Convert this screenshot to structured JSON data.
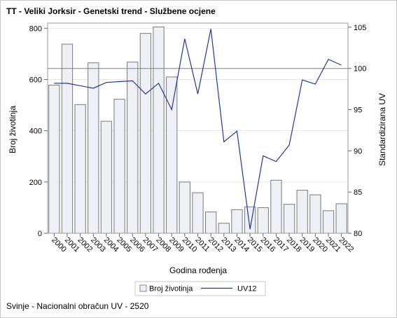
{
  "chart_data": {
    "type": "bar",
    "title": "TT - Veliki Jorksir - Genetski trend - Službene ocjene",
    "xlabel": "Godina rođenja",
    "ylabel": "Broj životinja",
    "y2label": "Standardizirana UV",
    "ylim": [
      0,
      820
    ],
    "y2lim": [
      80,
      105.5
    ],
    "yticks": [
      0,
      200,
      400,
      600,
      800
    ],
    "y2ticks": [
      80,
      85,
      90,
      95,
      100,
      105
    ],
    "reference_line_y2": 100,
    "grid": true,
    "legend_position": "bottom",
    "categories": [
      "2000",
      "2001",
      "2002",
      "2003",
      "2004",
      "2005",
      "2006",
      "2007",
      "2008",
      "2009",
      "2010",
      "2011",
      "2012",
      "2013",
      "2014",
      "2015",
      "2016",
      "2017",
      "2018",
      "2019",
      "2020",
      "2021",
      "2022"
    ],
    "series": [
      {
        "name": "Broj životinja",
        "type": "bar",
        "axis": "left",
        "color": "#eef0f5",
        "values": [
          578,
          738,
          502,
          665,
          437,
          523,
          668,
          780,
          805,
          610,
          200,
          158,
          83,
          39,
          92,
          103,
          100,
          207,
          113,
          168,
          150,
          88,
          115
        ]
      },
      {
        "name": "UV12",
        "type": "line",
        "axis": "right",
        "color": "#1f3a93",
        "values": [
          98.2,
          98.2,
          97.9,
          97.6,
          98.3,
          98.4,
          98.5,
          96.9,
          98.2,
          95.0,
          103.6,
          96.9,
          104.8,
          91.1,
          92.4,
          80.5,
          89.4,
          88.7,
          90.7,
          98.6,
          98.1,
          101.1,
          100.4
        ]
      }
    ]
  },
  "footnote": "Svinje - Nacionalni obračun UV - 2520"
}
